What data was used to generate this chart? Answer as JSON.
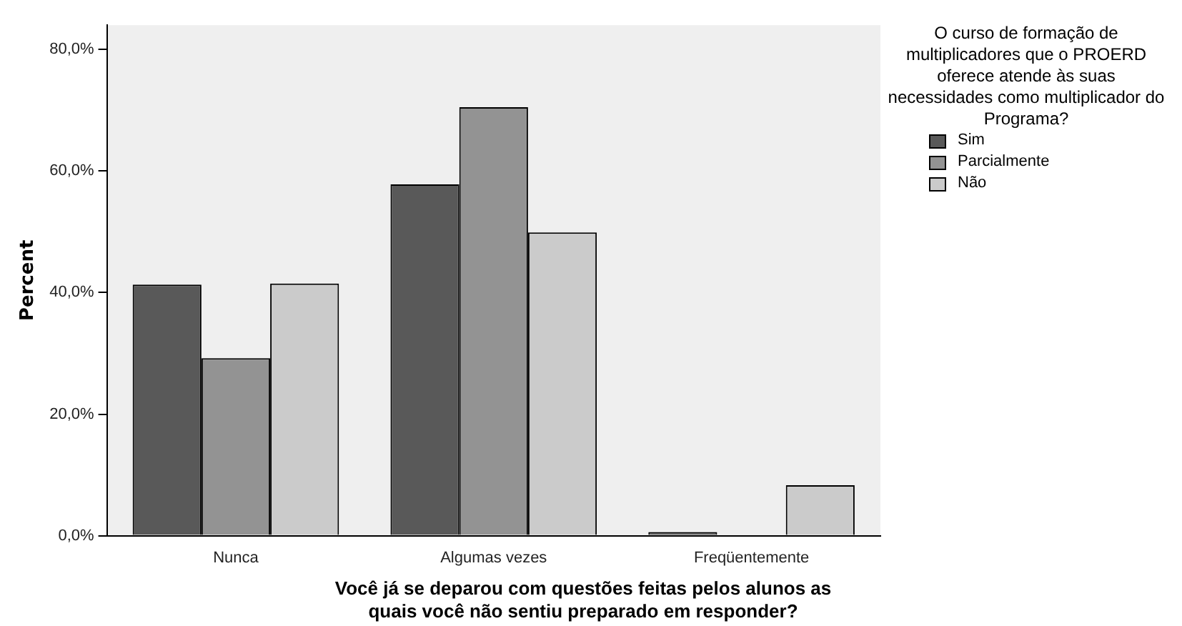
{
  "chart_data": {
    "type": "bar",
    "xlabel": "Você já se deparou com questões feitas pelos alunos as quais você não sentiu preparado em responder?",
    "ylabel": "Percent",
    "legend_title": "O curso de formação de multiplicadores que o PROERD oferece atende às suas necessidades como multiplicador do Programa?",
    "categories": [
      "Nunca",
      "Algumas vezes",
      "Freqüentemente"
    ],
    "series": [
      {
        "name": "Sim",
        "color": "#595959",
        "values": [
          41.3,
          57.8,
          0.6
        ]
      },
      {
        "name": "Parcialmente",
        "color": "#939393",
        "values": [
          29.2,
          70.5,
          0
        ]
      },
      {
        "name": "Não",
        "color": "#cbcbcb",
        "values": [
          41.5,
          49.9,
          8.3
        ]
      }
    ],
    "ylim": [
      0,
      84
    ],
    "yticks": [
      {
        "value": 0,
        "label": "0,0%"
      },
      {
        "value": 20,
        "label": "20,0%"
      },
      {
        "value": 40,
        "label": "40,0%"
      },
      {
        "value": 60,
        "label": "60,0%"
      },
      {
        "value": 80,
        "label": "80,0%"
      }
    ],
    "grid": false,
    "legend": "right"
  }
}
